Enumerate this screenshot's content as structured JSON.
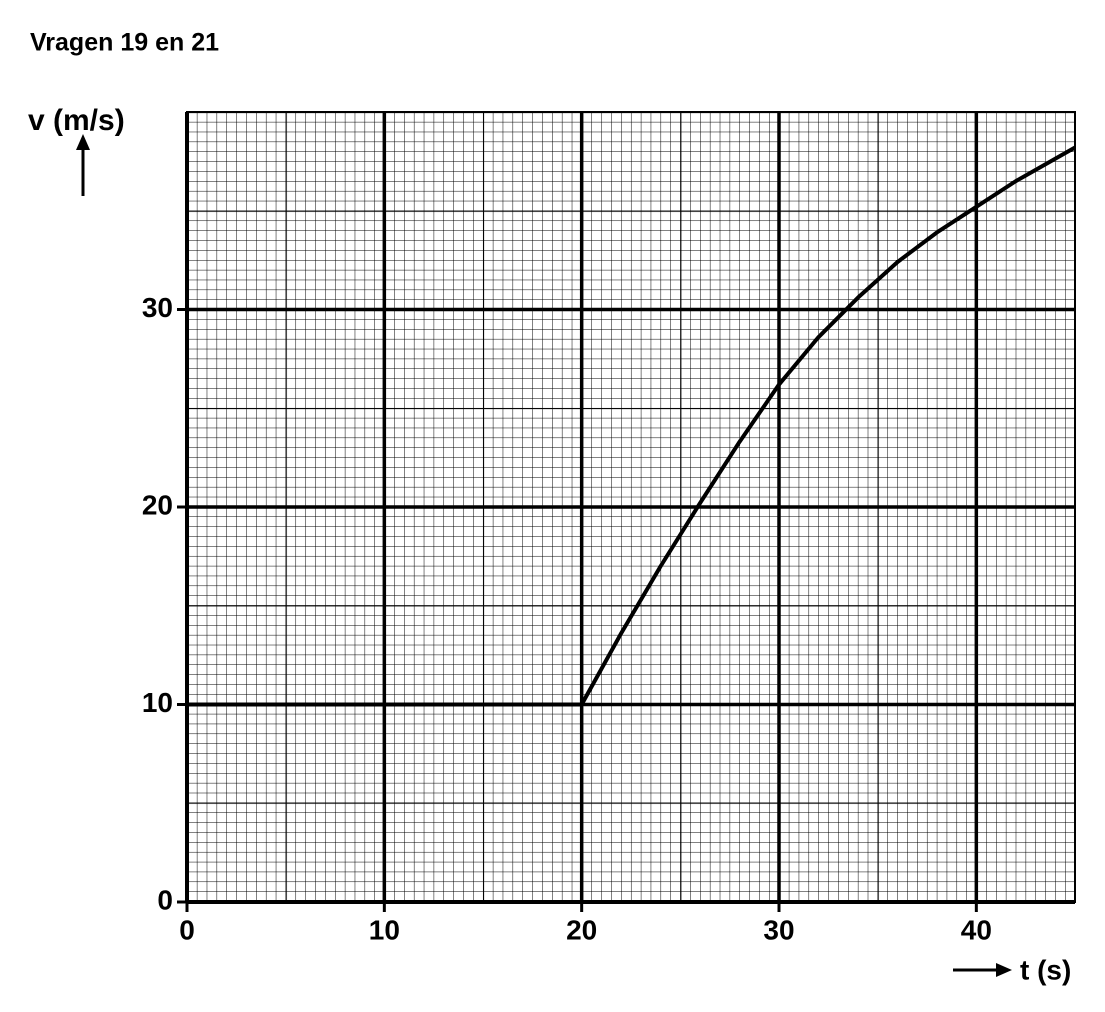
{
  "chart_data": {
    "type": "line",
    "title": "Vragen 19 en 21",
    "ylabel": "v (m/s)",
    "xlabel": "t (s)",
    "x": [
      0,
      20,
      22,
      24,
      26,
      28,
      30,
      32,
      34,
      36,
      38,
      40,
      42,
      45
    ],
    "series": [
      {
        "name": "v",
        "color": "#000000",
        "values": [
          10,
          10,
          13.6,
          17,
          20.2,
          23.3,
          26.2,
          28.6,
          30.6,
          32.4,
          33.9,
          35.2,
          36.5,
          38.2
        ]
      }
    ],
    "xlim": [
      0,
      45
    ],
    "ylim": [
      0,
      40
    ],
    "xticks": [
      0,
      10,
      20,
      30,
      40
    ],
    "yticks": [
      0,
      10,
      20,
      30
    ],
    "grid": true
  }
}
